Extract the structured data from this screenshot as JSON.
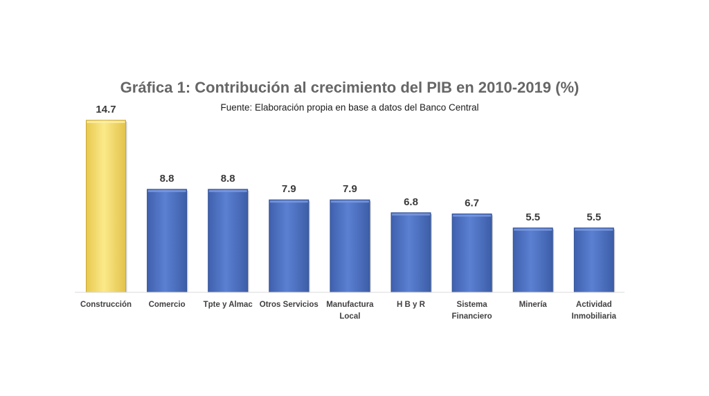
{
  "chart_data": {
    "type": "bar",
    "title": "Gráfica 1: Contribución al crecimiento del PIB en 2010-2019 (%)",
    "subtitle": "Fuente: Elaboración propia en base a datos del Banco Central",
    "categories": [
      [
        "Construcción"
      ],
      [
        "Comercio"
      ],
      [
        "Tpte y Almac"
      ],
      [
        "Otros Servicios"
      ],
      [
        "Manufactura",
        "Local"
      ],
      [
        "H B y R"
      ],
      [
        "Sistema",
        "Financiero"
      ],
      [
        "Minería"
      ],
      [
        "Actividad",
        "Inmobiliaria"
      ]
    ],
    "values": [
      14.7,
      8.8,
      8.8,
      7.9,
      7.9,
      6.8,
      6.7,
      5.5,
      5.5
    ],
    "value_labels": [
      "14.7",
      "8.8",
      "8.8",
      "7.9",
      "7.9",
      "6.8",
      "6.7",
      "5.5",
      "5.5"
    ],
    "bar_colors": [
      "#f5dc6a",
      "#4f74c9",
      "#4f74c9",
      "#4f74c9",
      "#4f74c9",
      "#4f74c9",
      "#4f74c9",
      "#4f74c9",
      "#4f74c9"
    ],
    "highlight_color": "#f5dc6a",
    "bar_color": "#4f74c9",
    "ylim": [
      0,
      14.7
    ],
    "xlabel": "",
    "ylabel": "",
    "grid": false,
    "legend": "none"
  }
}
